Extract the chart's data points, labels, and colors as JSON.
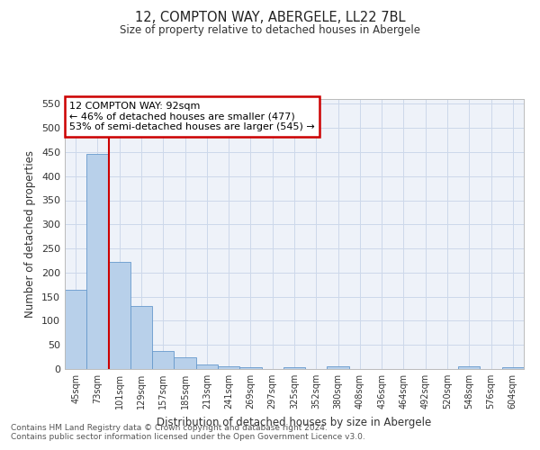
{
  "title": "12, COMPTON WAY, ABERGELE, LL22 7BL",
  "subtitle": "Size of property relative to detached houses in Abergele",
  "xlabel": "Distribution of detached houses by size in Abergele",
  "ylabel": "Number of detached properties",
  "footer_line1": "Contains HM Land Registry data © Crown copyright and database right 2024.",
  "footer_line2": "Contains public sector information licensed under the Open Government Licence v3.0.",
  "bin_labels": [
    "45sqm",
    "73sqm",
    "101sqm",
    "129sqm",
    "157sqm",
    "185sqm",
    "213sqm",
    "241sqm",
    "269sqm",
    "297sqm",
    "325sqm",
    "352sqm",
    "380sqm",
    "408sqm",
    "436sqm",
    "464sqm",
    "492sqm",
    "520sqm",
    "548sqm",
    "576sqm",
    "604sqm"
  ],
  "bar_values": [
    165,
    447,
    222,
    130,
    37,
    25,
    10,
    5,
    3,
    0,
    4,
    0,
    5,
    0,
    0,
    0,
    0,
    0,
    5,
    0,
    4
  ],
  "bar_color": "#b8d0ea",
  "bar_edge_color": "#6699cc",
  "grid_color": "#ccd8ea",
  "vline_x": 2,
  "annotation_text": "12 COMPTON WAY: 92sqm\n← 46% of detached houses are smaller (477)\n53% of semi-detached houses are larger (545) →",
  "annotation_box_color": "#ffffff",
  "annotation_box_edge": "#cc0000",
  "vline_color": "#cc0000",
  "ylim": [
    0,
    560
  ],
  "yticks": [
    0,
    50,
    100,
    150,
    200,
    250,
    300,
    350,
    400,
    450,
    500,
    550
  ],
  "background_color": "#ffffff",
  "plot_bg_color": "#eef2f9"
}
